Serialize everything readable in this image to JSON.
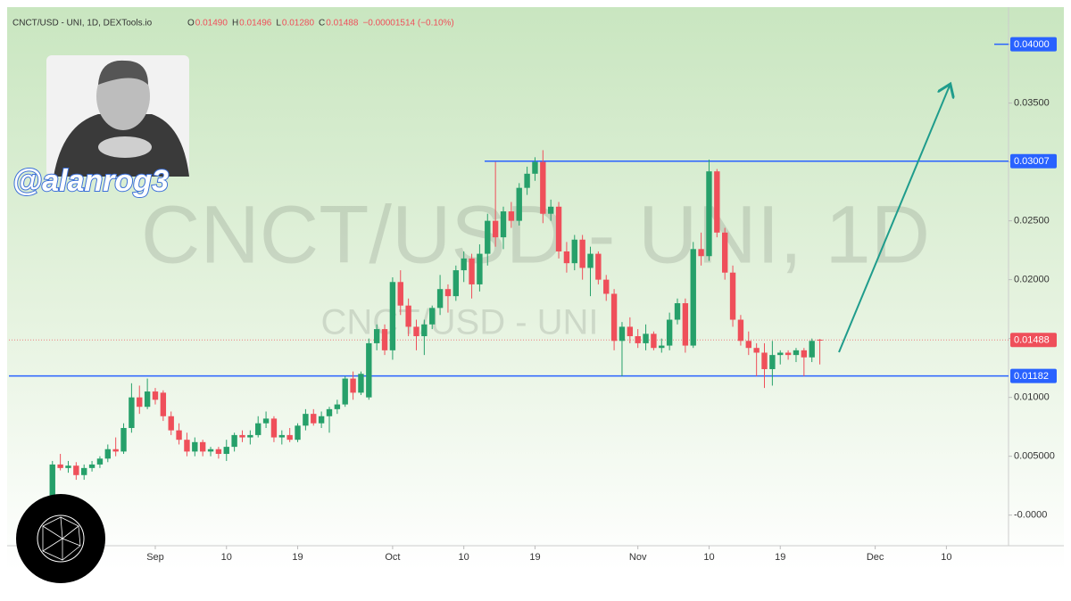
{
  "chart_data": {
    "type": "candlestick",
    "header": {
      "symbol": "CNCT/USD - UNI, 1D, DEXTools.io",
      "ohlc_letters": [
        "O",
        "H",
        "L",
        "C"
      ],
      "ohlc_values": [
        "0.01490",
        "0.01496",
        "0.01280",
        "0.01488"
      ],
      "change": "−0.00001514 (−0.10%)"
    },
    "watermark": "CNCT/USD - UNI, 1D",
    "watermark_small": "CNCT/USD - UNI",
    "handle": "@alanrog3",
    "up_color": "#26a06a",
    "down_color": "#ef4f5a",
    "categories": [
      null,
      null,
      null,
      null,
      null,
      null,
      null,
      null,
      null,
      null,
      null,
      null,
      null,
      null,
      null,
      null,
      null,
      null,
      "Sep",
      null,
      null,
      null,
      null,
      null,
      null,
      null,
      null,
      "10",
      null,
      null,
      null,
      null,
      null,
      null,
      null,
      null,
      "19",
      null,
      null,
      null,
      null,
      null,
      null,
      null,
      null,
      null,
      null,
      null,
      "Oct",
      null,
      null,
      null,
      null,
      null,
      null,
      null,
      null,
      "10",
      null,
      null,
      null,
      null,
      null,
      null,
      null,
      null,
      "19",
      null,
      null,
      null,
      null,
      null,
      null,
      null,
      null,
      null,
      null,
      null,
      null,
      "Nov",
      null,
      null,
      null,
      null,
      null,
      null,
      null,
      null,
      "10",
      null,
      null,
      null,
      null,
      null,
      null,
      null,
      null,
      "19",
      null,
      null,
      null,
      null,
      null,
      null,
      null,
      null,
      null,
      null,
      null,
      "Dec",
      null,
      null,
      null,
      null,
      null,
      null,
      null,
      null,
      "10",
      null,
      null,
      null,
      null,
      null,
      null
    ],
    "ohlc": [
      null,
      null,
      null,
      null,
      null,
      [
        0.0015,
        0.0046,
        0.0013,
        0.0043
      ],
      [
        0.0043,
        0.0052,
        0.0038,
        0.004
      ],
      [
        0.004,
        0.0046,
        0.0036,
        0.0042
      ],
      [
        0.0042,
        0.0045,
        0.003,
        0.0034
      ],
      [
        0.0034,
        0.0043,
        0.003,
        0.004
      ],
      [
        0.004,
        0.0046,
        0.0037,
        0.0043
      ],
      [
        0.0043,
        0.005,
        0.004,
        0.0048
      ],
      [
        0.0048,
        0.006,
        0.0045,
        0.0056
      ],
      [
        0.0056,
        0.0066,
        0.005,
        0.0054
      ],
      [
        0.0054,
        0.0078,
        0.0052,
        0.0074
      ],
      [
        0.0074,
        0.0112,
        0.007,
        0.01
      ],
      [
        0.01,
        0.011,
        0.0086,
        0.0092
      ],
      [
        0.0092,
        0.0116,
        0.009,
        0.0105
      ],
      [
        0.0105,
        0.0108,
        0.0094,
        0.0098
      ],
      [
        0.0104,
        0.0106,
        0.008,
        0.0084
      ],
      [
        0.0084,
        0.0088,
        0.0068,
        0.0072
      ],
      [
        0.0072,
        0.0078,
        0.006,
        0.0064
      ],
      [
        0.0064,
        0.007,
        0.005,
        0.0054
      ],
      [
        0.0054,
        0.0066,
        0.005,
        0.0062
      ],
      [
        0.0062,
        0.0064,
        0.005,
        0.0054
      ],
      [
        0.0054,
        0.0058,
        0.005,
        0.0056
      ],
      [
        0.0056,
        0.0058,
        0.0048,
        0.0052
      ],
      [
        0.0052,
        0.0064,
        0.0046,
        0.0058
      ],
      [
        0.0058,
        0.007,
        0.0054,
        0.0068
      ],
      [
        0.0068,
        0.0072,
        0.0062,
        0.0066
      ],
      [
        0.0066,
        0.0072,
        0.006,
        0.0068
      ],
      [
        0.0068,
        0.0084,
        0.0066,
        0.0078
      ],
      [
        0.0078,
        0.0088,
        0.0074,
        0.0082
      ],
      [
        0.0082,
        0.0084,
        0.0062,
        0.0066
      ],
      [
        0.0066,
        0.0072,
        0.006,
        0.0068
      ],
      [
        0.0068,
        0.0074,
        0.0062,
        0.0064
      ],
      [
        0.0064,
        0.0078,
        0.0062,
        0.0076
      ],
      [
        0.0076,
        0.009,
        0.0072,
        0.0086
      ],
      [
        0.0086,
        0.009,
        0.0076,
        0.0078
      ],
      [
        0.0078,
        0.0088,
        0.0074,
        0.0084
      ],
      [
        0.0084,
        0.0092,
        0.007,
        0.009
      ],
      [
        0.009,
        0.0098,
        0.0086,
        0.0094
      ],
      [
        0.0094,
        0.0118,
        0.0092,
        0.0116
      ],
      [
        0.0116,
        0.0122,
        0.0098,
        0.0104
      ],
      [
        0.0104,
        0.0122,
        0.0102,
        0.012
      ],
      [
        0.01,
        0.015,
        0.0098,
        0.0146
      ],
      [
        0.0146,
        0.0162,
        0.014,
        0.0158
      ],
      [
        0.0158,
        0.0162,
        0.0136,
        0.014
      ],
      [
        0.014,
        0.0202,
        0.0132,
        0.0198
      ],
      [
        0.0198,
        0.0208,
        0.017,
        0.0178
      ],
      [
        0.0178,
        0.0184,
        0.0152,
        0.016
      ],
      [
        0.016,
        0.0166,
        0.014,
        0.0152
      ],
      [
        0.0152,
        0.0166,
        0.0136,
        0.0162
      ],
      [
        0.0162,
        0.0178,
        0.0158,
        0.0176
      ],
      [
        0.0176,
        0.0204,
        0.017,
        0.0192
      ],
      [
        0.0192,
        0.0196,
        0.0172,
        0.0186
      ],
      [
        0.0186,
        0.0212,
        0.0182,
        0.0208
      ],
      [
        0.0208,
        0.0224,
        0.0198,
        0.0218
      ],
      [
        0.0218,
        0.0222,
        0.0184,
        0.0196
      ],
      [
        0.0196,
        0.023,
        0.019,
        0.0222
      ],
      [
        0.0222,
        0.0256,
        0.0212,
        0.025
      ],
      [
        0.025,
        0.03,
        0.0228,
        0.0236
      ],
      [
        0.0236,
        0.0262,
        0.0226,
        0.0258
      ],
      [
        0.0258,
        0.0266,
        0.0244,
        0.025
      ],
      [
        0.025,
        0.0282,
        0.0246,
        0.0278
      ],
      [
        0.0278,
        0.0296,
        0.0272,
        0.029
      ],
      [
        0.029,
        0.0304,
        0.0284,
        0.03
      ],
      [
        0.03,
        0.031,
        0.0248,
        0.0256
      ],
      [
        0.0256,
        0.0268,
        0.025,
        0.0262
      ],
      [
        0.0262,
        0.0266,
        0.0218,
        0.0224
      ],
      [
        0.0224,
        0.0232,
        0.0206,
        0.0214
      ],
      [
        0.0214,
        0.0238,
        0.0208,
        0.0234
      ],
      [
        0.0234,
        0.0238,
        0.02,
        0.021
      ],
      [
        0.021,
        0.0228,
        0.0186,
        0.0222
      ],
      [
        0.0222,
        0.0224,
        0.0196,
        0.02
      ],
      [
        0.02,
        0.0204,
        0.0182,
        0.0188
      ],
      [
        0.0188,
        0.0192,
        0.014,
        0.0148
      ],
      [
        0.0148,
        0.0164,
        0.0118,
        0.016
      ],
      [
        0.016,
        0.0168,
        0.0146,
        0.0152
      ],
      [
        0.0152,
        0.0158,
        0.0142,
        0.0146
      ],
      [
        0.0146,
        0.0162,
        0.014,
        0.0154
      ],
      [
        0.0154,
        0.0156,
        0.014,
        0.0142
      ],
      [
        0.0142,
        0.015,
        0.0138,
        0.0144
      ],
      [
        0.0144,
        0.0172,
        0.014,
        0.0166
      ],
      [
        0.0166,
        0.0184,
        0.0162,
        0.018
      ],
      [
        0.018,
        0.0184,
        0.0138,
        0.0144
      ],
      [
        0.0144,
        0.0232,
        0.0142,
        0.0226
      ],
      [
        0.0226,
        0.024,
        0.0212,
        0.022
      ],
      [
        0.022,
        0.0302,
        0.0216,
        0.0292
      ],
      [
        0.0292,
        0.0294,
        0.0236,
        0.024
      ],
      [
        0.024,
        0.0244,
        0.02,
        0.0206
      ],
      [
        0.0206,
        0.0212,
        0.016,
        0.0166
      ],
      [
        0.0166,
        0.017,
        0.0144,
        0.0148
      ],
      [
        0.0148,
        0.0156,
        0.0136,
        0.0142
      ],
      [
        0.0142,
        0.0146,
        0.0118,
        0.0138
      ],
      [
        0.0138,
        0.0146,
        0.0108,
        0.0124
      ],
      [
        0.0124,
        0.0148,
        0.011,
        0.0136
      ],
      [
        0.0136,
        0.014,
        0.0128,
        0.0138
      ],
      [
        0.0138,
        0.014,
        0.0132,
        0.0136
      ],
      [
        0.0136,
        0.0142,
        0.013,
        0.014
      ],
      [
        0.014,
        0.0142,
        0.0118,
        0.0134
      ],
      [
        0.0134,
        0.015,
        0.013,
        0.0148
      ],
      [
        0.0149,
        0.01496,
        0.0128,
        0.01488
      ],
      null,
      null,
      null,
      null,
      null,
      null,
      null,
      null,
      null,
      null,
      null,
      null,
      null,
      null,
      null,
      null,
      null,
      null,
      null,
      null,
      null,
      null
    ],
    "ylim": [
      -0.0026,
      0.043
    ],
    "yticks": [
      {
        "value": 0.0,
        "label": "-0.0000"
      },
      {
        "value": 0.005,
        "label": "0.005000"
      },
      {
        "value": 0.01,
        "label": "0.01000"
      },
      {
        "value": 0.015,
        "label": "0.01500"
      },
      {
        "value": 0.02,
        "label": "0.02000"
      },
      {
        "value": 0.025,
        "label": "0.02500"
      },
      {
        "value": 0.03,
        "label": "0.03000"
      },
      {
        "value": 0.035,
        "label": "0.03500"
      },
      {
        "value": 0.04,
        "label": "0.04000"
      }
    ],
    "levels": [
      {
        "value": 0.04,
        "label": "0.04000",
        "color": "#2962ff"
      },
      {
        "value": 0.03007,
        "label": "0.03007",
        "color": "#2962ff"
      },
      {
        "value": 0.01182,
        "label": "0.01182",
        "color": "#2962ff"
      },
      {
        "value": 0.01488,
        "label": "0.01488",
        "color": "#ef4f5a"
      }
    ]
  }
}
